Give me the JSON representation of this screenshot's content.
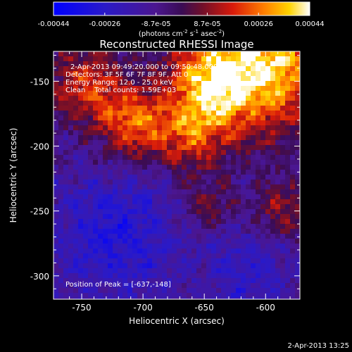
{
  "colorbar": {
    "ticks": [
      "-0.00044",
      "-0.00026",
      "-8.7e-05",
      "8.7e-05",
      "0.00026",
      "0.00044"
    ],
    "units_main": "(photons cm",
    "units_exp1": "-2",
    "units_mid1": " s",
    "units_exp2": "-1",
    "units_mid2": " asec",
    "units_exp3": "-2",
    "units_end": ")",
    "colormap": "blue-purple-red-yellow-white"
  },
  "chart_data": {
    "type": "heatmap",
    "title": "Reconstructed RHESSI Image",
    "xlabel": "Heliocentric X (arcsec)",
    "ylabel": "Heliocentric Y (arcsec)",
    "xlim": [
      -773,
      -572
    ],
    "ylim": [
      -318,
      -127
    ],
    "x_ticks": [
      -750,
      -700,
      -650,
      -600
    ],
    "y_ticks": [
      -150,
      -200,
      -250,
      -300
    ],
    "x_tick_labels": [
      "-750",
      "-700",
      "-650",
      "-600"
    ],
    "y_tick_labels": [
      "-150",
      "-200",
      "-250",
      "-300"
    ],
    "value_range": [
      -0.00044,
      0.00044
    ],
    "peak_position": [
      -637,
      -148
    ],
    "annotations": {
      "time_range": "2-Apr-2013 09:49:20.000 to 09:50:48.000",
      "detectors": "Detectors: 3F 5F 6F 7F 8F 9F, Att 0",
      "energy_range": "Energy Range: 12.0 - 25.0 keV",
      "method_counts": "Clean    Total counts: 1.59E+03",
      "peak_label": "Position of Peak = [-637,-148]"
    }
  },
  "footer": {
    "timestamp": "2-Apr-2013 13:25"
  }
}
